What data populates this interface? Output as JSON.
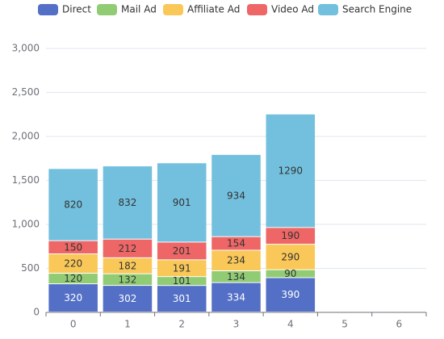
{
  "chart_data": {
    "type": "bar",
    "stacked": true,
    "categories": [
      "0",
      "1",
      "2",
      "3",
      "4",
      "5",
      "6"
    ],
    "series": [
      {
        "name": "Direct",
        "color": "#5470c6",
        "values": [
          320,
          302,
          301,
          334,
          390,
          null,
          null
        ]
      },
      {
        "name": "Mail Ad",
        "color": "#91cc75",
        "values": [
          120,
          132,
          101,
          134,
          90,
          null,
          null
        ]
      },
      {
        "name": "Affiliate Ad",
        "color": "#fac858",
        "values": [
          220,
          182,
          191,
          234,
          290,
          null,
          null
        ]
      },
      {
        "name": "Video Ad",
        "color": "#ee6666",
        "values": [
          150,
          212,
          201,
          154,
          190,
          null,
          null
        ]
      },
      {
        "name": "Search Engine",
        "color": "#73c0de",
        "values": [
          820,
          832,
          901,
          934,
          1290,
          null,
          null
        ]
      }
    ],
    "ylim": [
      0,
      3000
    ],
    "yticks": [
      0,
      500,
      {
        "value": 1000,
        "label": "1,000"
      },
      {
        "value": 1500,
        "label": "1,500"
      },
      {
        "value": 2000,
        "label": "2,000"
      },
      {
        "value": 2500,
        "label": "2,500"
      },
      {
        "value": 3000,
        "label": "3,000"
      }
    ],
    "grid": true,
    "legend": "top"
  }
}
